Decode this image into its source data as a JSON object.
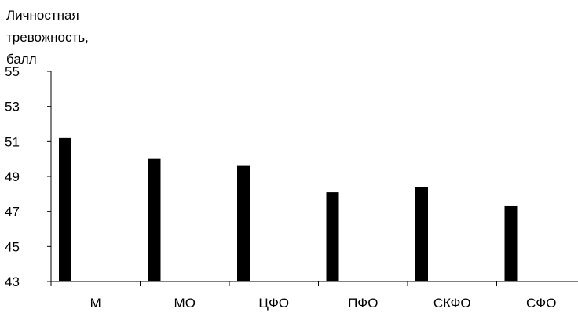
{
  "chart_data": {
    "type": "bar",
    "ylabel_lines": [
      "Личностная",
      "тревожность,",
      "балл"
    ],
    "categories": [
      "М",
      "МО",
      "ЦФО",
      "ПФО",
      "СКФО",
      "СФО"
    ],
    "values": [
      51.2,
      50.0,
      49.6,
      48.1,
      48.4,
      47.3
    ],
    "ylim": [
      43,
      55
    ],
    "yticks": [
      "43",
      "45",
      "47",
      "49",
      "51",
      "53",
      "55"
    ],
    "bar_color": "#000000",
    "grid": false,
    "legend": "none"
  }
}
